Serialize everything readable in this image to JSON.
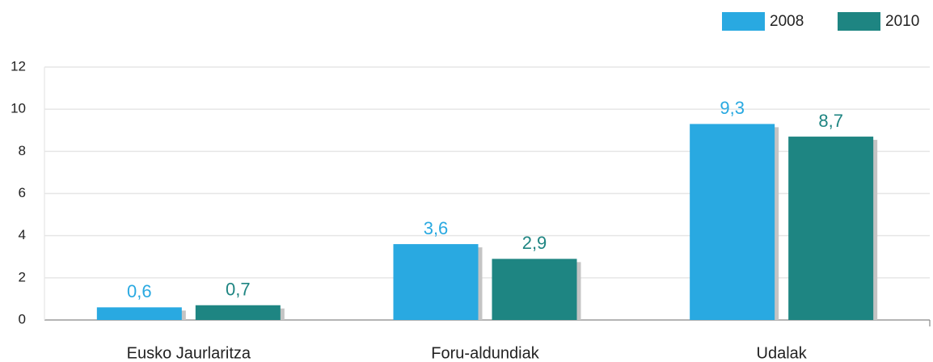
{
  "chart_data": {
    "type": "bar",
    "categories": [
      "Eusko Jaurlaritza",
      "Foru-aldundiak",
      "Udalak"
    ],
    "series": [
      {
        "name": "2008",
        "color": "#29a9e1",
        "values": [
          0.6,
          3.6,
          9.3
        ],
        "value_labels": [
          "0,6",
          "3,6",
          "9,3"
        ]
      },
      {
        "name": "2010",
        "color": "#1e8582",
        "values": [
          0.7,
          2.9,
          8.7
        ],
        "value_labels": [
          "0,7",
          "2,9",
          "8,7"
        ]
      }
    ],
    "ylim": [
      0,
      12
    ],
    "yticks": [
      0,
      2,
      4,
      6,
      8,
      10,
      12
    ],
    "grid": true,
    "legend": "top-right"
  }
}
